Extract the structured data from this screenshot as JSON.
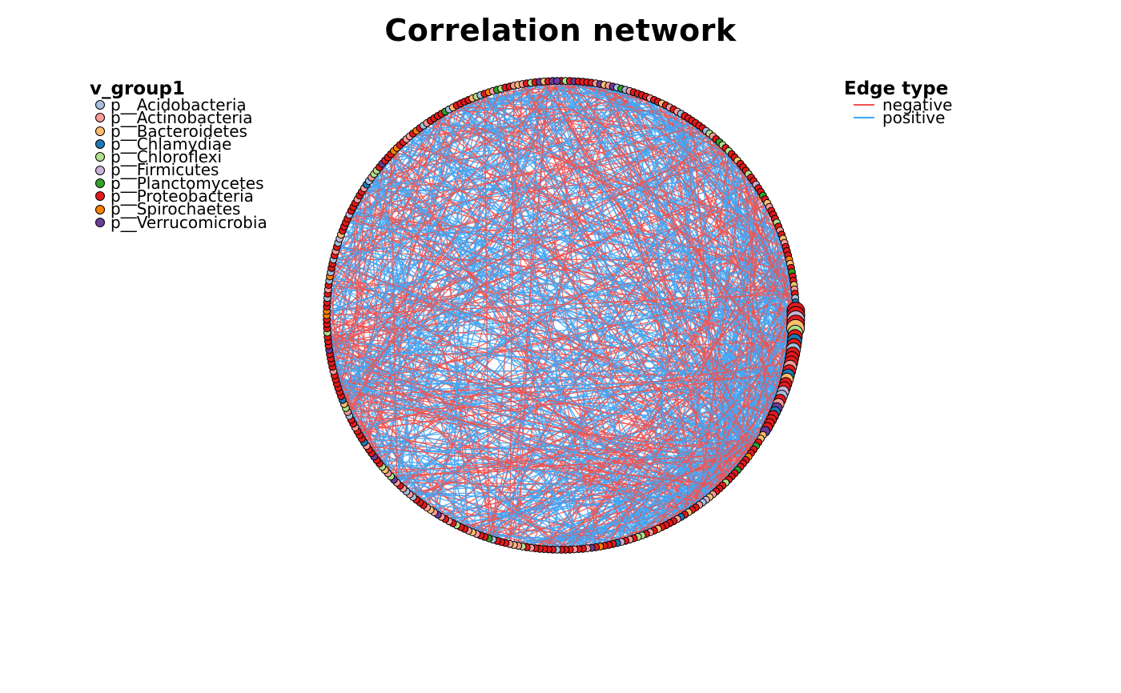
{
  "title": "Correlation network",
  "node_legend": {
    "title": "v_group1",
    "items": [
      {
        "label": "p__Acidobacteria",
        "color": "#a6bddb"
      },
      {
        "label": "p__Actinobacteria",
        "color": "#fb9a99"
      },
      {
        "label": "p__Bacteroidetes",
        "color": "#fdbf6f"
      },
      {
        "label": "p__Chlamydiae",
        "color": "#1f78b4"
      },
      {
        "label": "p__Chloroflexi",
        "color": "#b2df8a"
      },
      {
        "label": "p__Firmicutes",
        "color": "#cab2d6"
      },
      {
        "label": "p__Planctomycetes",
        "color": "#33a02c"
      },
      {
        "label": "p__Proteobacteria",
        "color": "#e31a1c"
      },
      {
        "label": "p__Spirochaetes",
        "color": "#ff7f00"
      },
      {
        "label": "p__Verrucomicrobia",
        "color": "#6a3d9a"
      }
    ]
  },
  "edge_legend": {
    "title": "Edge type",
    "items": [
      {
        "label": "negative",
        "color": "#ef5350"
      },
      {
        "label": "positive",
        "color": "#42a5f5"
      }
    ]
  },
  "network": {
    "layout": "circle",
    "node_outline_color": "#000000"
  }
}
